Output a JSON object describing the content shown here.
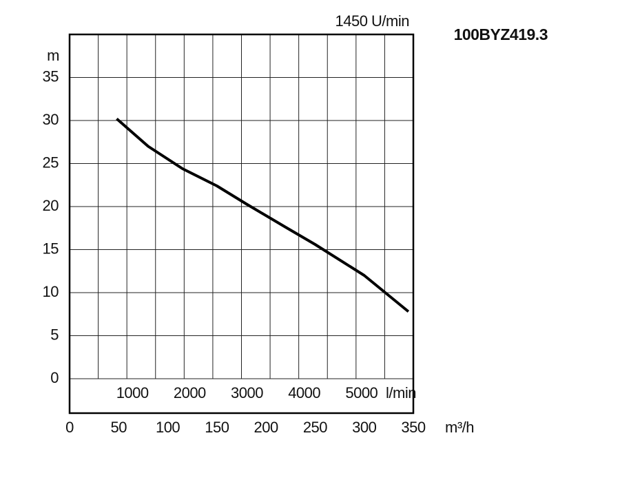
{
  "chart_data": {
    "type": "line",
    "title": "100BYZ419.3",
    "subtitle": "1450 U/min",
    "y_label": "m",
    "x_label": "m³/h",
    "x2_label": "l/min",
    "x": [
      48,
      80,
      115,
      150,
      180,
      220,
      250,
      300,
      345
    ],
    "series": [
      {
        "name": "100BYZ419.3",
        "color": "#000000",
        "values": [
          30.2,
          27.0,
          24.4,
          22.4,
          20.3,
          17.6,
          15.6,
          12.0,
          7.8
        ]
      }
    ],
    "xlim": [
      0,
      350
    ],
    "xticks": [
      0,
      50,
      100,
      150,
      200,
      250,
      300,
      350
    ],
    "ylim": [
      -4,
      40
    ],
    "yticks": [
      0,
      5,
      10,
      15,
      20,
      25,
      30,
      35
    ],
    "x2lim": [
      0,
      6000
    ],
    "x2ticks": [
      1000,
      2000,
      3000,
      4000,
      5000
    ],
    "x2_minor_ticks": [
      500,
      1500,
      2500,
      3500,
      4500,
      5500
    ],
    "grid": true
  }
}
